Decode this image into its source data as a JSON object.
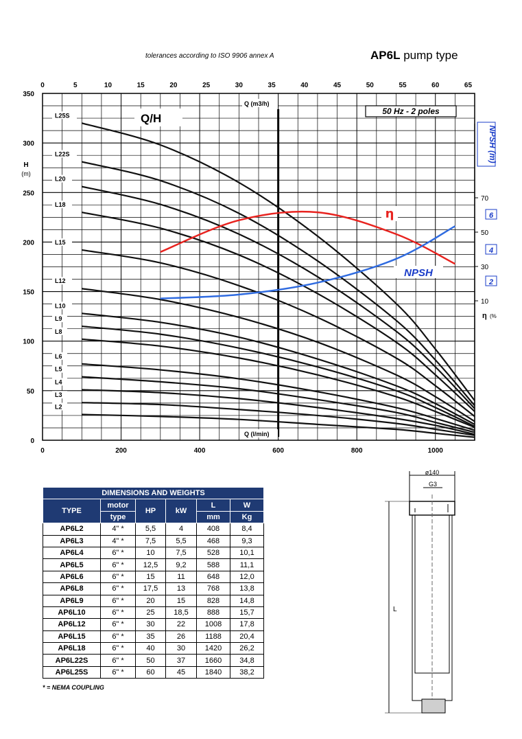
{
  "header": {
    "tolerance_note": "tolerances according to ISO 9906 annex A",
    "pump_model": "AP6L",
    "pump_type_label": "pump type"
  },
  "chart_data": {
    "type": "line",
    "title": "Q/H",
    "frequency_label": "50 Hz - 2 poles",
    "x_bottom": {
      "label": "Q (l/min)",
      "range": [
        0,
        1100
      ],
      "ticks": [
        0,
        200,
        400,
        600,
        800,
        1000
      ]
    },
    "x_top": {
      "label": "Q (m3/h)",
      "range": [
        0,
        66
      ],
      "ticks": [
        0,
        5,
        10,
        15,
        20,
        25,
        30,
        35,
        40,
        45,
        50,
        55,
        60,
        65
      ]
    },
    "y_left": {
      "label": "H",
      "unit": "(m)",
      "range": [
        0,
        350
      ],
      "ticks": [
        0,
        50,
        100,
        150,
        200,
        250,
        300,
        350
      ]
    },
    "y_right_eta": {
      "label": "η",
      "unit": "(%",
      "ticks": [
        10,
        30,
        50,
        70
      ]
    },
    "y_right_npsh": {
      "label": "NPSH (m)",
      "ticks": [
        2,
        4,
        6
      ]
    },
    "grid": true,
    "reference_line_x": 600,
    "series": [
      {
        "name": "L25S",
        "x": [
          100,
          300,
          500,
          700,
          900,
          1000,
          1100
        ],
        "y": [
          320,
          298,
          260,
          206,
          138,
          92,
          40
        ]
      },
      {
        "name": "L22S",
        "x": [
          100,
          300,
          500,
          700,
          900,
          1000,
          1100
        ],
        "y": [
          281,
          262,
          229,
          181,
          121,
          81,
          35
        ]
      },
      {
        "name": "L20",
        "x": [
          100,
          300,
          500,
          700,
          900,
          1000,
          1100
        ],
        "y": [
          256,
          238,
          208,
          165,
          110,
          74,
          32
        ]
      },
      {
        "name": "L18",
        "x": [
          100,
          300,
          500,
          700,
          900,
          1000,
          1100
        ],
        "y": [
          230,
          214,
          187,
          148,
          99,
          66,
          29
        ]
      },
      {
        "name": "L15",
        "x": [
          100,
          300,
          500,
          700,
          900,
          1000,
          1100
        ],
        "y": [
          192,
          179,
          156,
          124,
          83,
          55,
          24
        ]
      },
      {
        "name": "L12",
        "x": [
          100,
          300,
          500,
          700,
          900,
          1000,
          1100
        ],
        "y": [
          153,
          142,
          124,
          99,
          66,
          44,
          19
        ]
      },
      {
        "name": "L10",
        "x": [
          100,
          300,
          500,
          700,
          900,
          1000,
          1100
        ],
        "y": [
          128,
          119,
          104,
          82,
          55,
          37,
          16
        ]
      },
      {
        "name": "L9",
        "x": [
          100,
          300,
          500,
          700,
          900,
          1000,
          1100
        ],
        "y": [
          115,
          107,
          93,
          74,
          50,
          33,
          14
        ]
      },
      {
        "name": "L8",
        "x": [
          100,
          300,
          500,
          700,
          900,
          1000,
          1100
        ],
        "y": [
          102,
          95,
          83,
          66,
          44,
          29,
          13
        ]
      },
      {
        "name": "L6",
        "x": [
          100,
          300,
          500,
          700,
          900,
          1000,
          1100
        ],
        "y": [
          77,
          71,
          62,
          49,
          33,
          22,
          10
        ]
      },
      {
        "name": "L5",
        "x": [
          100,
          300,
          500,
          700,
          900,
          1000,
          1100
        ],
        "y": [
          64,
          59,
          52,
          41,
          28,
          18,
          8
        ]
      },
      {
        "name": "L4",
        "x": [
          100,
          300,
          500,
          700,
          900,
          1000,
          1100
        ],
        "y": [
          51,
          48,
          42,
          33,
          22,
          15,
          6
        ]
      },
      {
        "name": "L3",
        "x": [
          100,
          300,
          500,
          700,
          900,
          1000,
          1100
        ],
        "y": [
          38,
          36,
          31,
          25,
          17,
          11,
          5
        ]
      },
      {
        "name": "L2",
        "x": [
          100,
          300,
          500,
          700,
          900,
          1000,
          1100
        ],
        "y": [
          26,
          24,
          21,
          16,
          11,
          7,
          3
        ]
      }
    ],
    "eta_curve": {
      "name": "η",
      "x": [
        300,
        500,
        700,
        900,
        1050
      ],
      "y": [
        190,
        222,
        230,
        208,
        178
      ]
    },
    "npsh_curve": {
      "name": "NPSH",
      "x": [
        300,
        500,
        700,
        900,
        1050
      ],
      "y": [
        143,
        147,
        159,
        183,
        216
      ]
    }
  },
  "table": {
    "title": "DIMENSIONS AND WEIGHTS",
    "headers": {
      "type": "TYPE",
      "motor_line1": "motor",
      "motor_line2": "type",
      "hp": "HP",
      "kw": "kW",
      "l": "L",
      "l_unit": "mm",
      "w": "W",
      "w_unit": "Kg"
    },
    "rows": [
      {
        "type": "AP6L2",
        "motor": "4\" *",
        "hp": "5,5",
        "kw": "4",
        "l": "408",
        "w": "8,4"
      },
      {
        "type": "AP6L3",
        "motor": "4\" *",
        "hp": "7,5",
        "kw": "5,5",
        "l": "468",
        "w": "9,3"
      },
      {
        "type": "AP6L4",
        "motor": "6\" *",
        "hp": "10",
        "kw": "7,5",
        "l": "528",
        "w": "10,1"
      },
      {
        "type": "AP6L5",
        "motor": "6\" *",
        "hp": "12,5",
        "kw": "9,2",
        "l": "588",
        "w": "11,1"
      },
      {
        "type": "AP6L6",
        "motor": "6\" *",
        "hp": "15",
        "kw": "11",
        "l": "648",
        "w": "12,0"
      },
      {
        "type": "AP6L8",
        "motor": "6\" *",
        "hp": "17,5",
        "kw": "13",
        "l": "768",
        "w": "13,8"
      },
      {
        "type": "AP6L9",
        "motor": "6\" *",
        "hp": "20",
        "kw": "15",
        "l": "828",
        "w": "14,8"
      },
      {
        "type": "AP6L10",
        "motor": "6\" *",
        "hp": "25",
        "kw": "18,5",
        "l": "888",
        "w": "15,7"
      },
      {
        "type": "AP6L12",
        "motor": "6\" *",
        "hp": "30",
        "kw": "22",
        "l": "1008",
        "w": "17,8"
      },
      {
        "type": "AP6L15",
        "motor": "6\" *",
        "hp": "35",
        "kw": "26",
        "l": "1188",
        "w": "20,4"
      },
      {
        "type": "AP6L18",
        "motor": "6\" *",
        "hp": "40",
        "kw": "30",
        "l": "1420",
        "w": "26,2"
      },
      {
        "type": "AP6L22S",
        "motor": "6\" *",
        "hp": "50",
        "kw": "37",
        "l": "1660",
        "w": "34,8"
      },
      {
        "type": "AP6L25S",
        "motor": "6\" *",
        "hp": "60",
        "kw": "45",
        "l": "1840",
        "w": "38,2"
      }
    ],
    "footnote": "* = NEMA COUPLING"
  },
  "drawing": {
    "diameter_label": "ø140",
    "thread_label": "G3",
    "length_label": "L"
  }
}
